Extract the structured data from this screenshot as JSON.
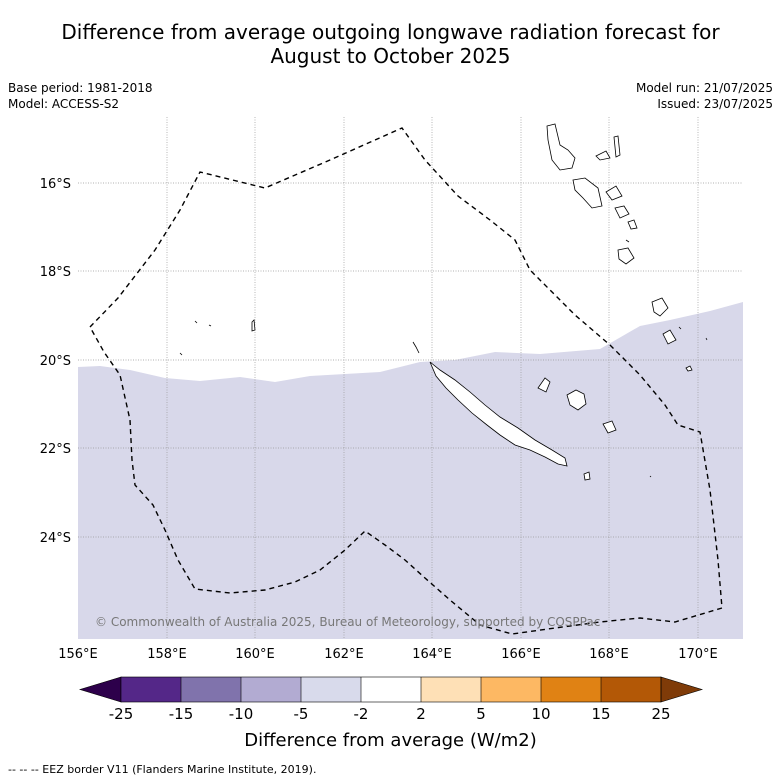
{
  "header": {
    "title_line1": "Difference from average outgoing longwave radiation forecast for",
    "title_line2": "August to October 2025",
    "base_period": "Base period: 1981-2018",
    "model": "Model: ACCESS-S2",
    "model_run": "Model run: 21/07/2025",
    "issued": "Issued: 23/07/2025"
  },
  "map": {
    "lat_labels": [
      "16°S",
      "18°S",
      "20°S",
      "22°S",
      "24°S"
    ],
    "lon_labels": [
      "156°E",
      "158°E",
      "160°E",
      "162°E",
      "164°E",
      "166°E",
      "168°E",
      "170°E"
    ],
    "anomaly_fill_color": "#d8d8ea",
    "copyright": "© Commonwealth of Australia 2025, Bureau of Meteorology, supported by COSPPac"
  },
  "colorbar": {
    "ticks": [
      "-25",
      "-15",
      "-10",
      "-5",
      "-2",
      "2",
      "5",
      "10",
      "15",
      "25"
    ],
    "colors": [
      "#2d004b",
      "#542788",
      "#8073ac",
      "#b2abd2",
      "#d8daeb",
      "#ffffff",
      "#fee0b6",
      "#fdb863",
      "#e08214",
      "#b35806",
      "#7f3b08"
    ],
    "label": "Difference from average (W/m2)"
  },
  "footer": {
    "eez_note": "--  --  -- EEZ border V11 (Flanders Marine Institute, 2019)."
  }
}
